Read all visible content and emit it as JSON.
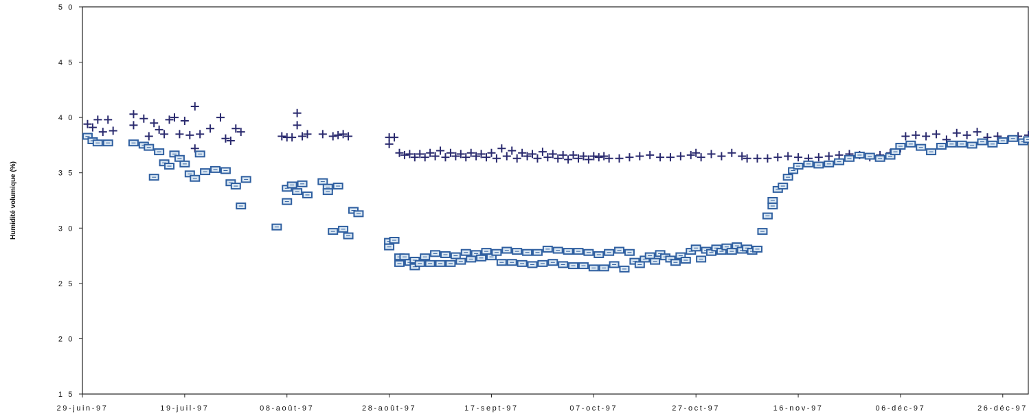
{
  "chart_data": {
    "type": "scatter",
    "title": "",
    "xlabel": "",
    "ylabel": "Humidité volumique (%)",
    "ylim": [
      15,
      50
    ],
    "yticks": [
      15,
      20,
      25,
      30,
      35,
      40,
      45,
      50
    ],
    "ytick_labels": [
      "1 5",
      "2 0",
      "2 5",
      "3 0",
      "3 5",
      "4 0",
      "4 5",
      "5 0"
    ],
    "xlim": [
      "1997-06-29",
      "1997-12-31"
    ],
    "xticks": [
      "1997-06-29",
      "1997-07-19",
      "1997-08-08",
      "1997-08-28",
      "1997-09-17",
      "1997-10-07",
      "1997-10-27",
      "1997-11-16",
      "1997-12-06",
      "1997-12-26"
    ],
    "xtick_labels": [
      "29-juin-97",
      "19-juil-97",
      "08-août-97",
      "28-août-97",
      "17-sept-97",
      "07-oct-97",
      "27-oct-97",
      "16-nov-97",
      "06-déc-97",
      "26-déc-97"
    ],
    "grid": false,
    "series": [
      {
        "marker": "plus",
        "color": "#2a2a6e",
        "points": [
          [
            "1997-06-30",
            39.4
          ],
          [
            "1997-07-01",
            39.1
          ],
          [
            "1997-07-02",
            39.8
          ],
          [
            "1997-07-03",
            38.7
          ],
          [
            "1997-07-04",
            39.8
          ],
          [
            "1997-07-05",
            38.8
          ],
          [
            "1997-07-09",
            40.3
          ],
          [
            "1997-07-09",
            39.3
          ],
          [
            "1997-07-11",
            39.9
          ],
          [
            "1997-07-12",
            38.3
          ],
          [
            "1997-07-13",
            39.5
          ],
          [
            "1997-07-14",
            38.9
          ],
          [
            "1997-07-15",
            38.5
          ],
          [
            "1997-07-16",
            39.8
          ],
          [
            "1997-07-17",
            40.0
          ],
          [
            "1997-07-18",
            38.5
          ],
          [
            "1997-07-19",
            39.7
          ],
          [
            "1997-07-20",
            38.4
          ],
          [
            "1997-07-21",
            41.0
          ],
          [
            "1997-07-21",
            37.2
          ],
          [
            "1997-07-22",
            38.5
          ],
          [
            "1997-07-24",
            39.0
          ],
          [
            "1997-07-26",
            40.0
          ],
          [
            "1997-07-27",
            38.1
          ],
          [
            "1997-07-28",
            37.9
          ],
          [
            "1997-07-29",
            39.0
          ],
          [
            "1997-07-30",
            38.7
          ],
          [
            "1997-08-07",
            38.3
          ],
          [
            "1997-08-08",
            38.2
          ],
          [
            "1997-08-09",
            38.2
          ],
          [
            "1997-08-10",
            40.4
          ],
          [
            "1997-08-10",
            39.3
          ],
          [
            "1997-08-11",
            38.3
          ],
          [
            "1997-08-12",
            38.5
          ],
          [
            "1997-08-15",
            38.5
          ],
          [
            "1997-08-17",
            38.3
          ],
          [
            "1997-08-18",
            38.4
          ],
          [
            "1997-08-19",
            38.5
          ],
          [
            "1997-08-20",
            38.3
          ],
          [
            "1997-08-28",
            38.2
          ],
          [
            "1997-08-28",
            37.6
          ],
          [
            "1997-08-29",
            38.2
          ],
          [
            "1997-08-30",
            36.8
          ],
          [
            "1997-08-31",
            36.6
          ],
          [
            "1997-09-01",
            36.7
          ],
          [
            "1997-09-02",
            36.4
          ],
          [
            "1997-09-03",
            36.7
          ],
          [
            "1997-09-04",
            36.4
          ],
          [
            "1997-09-05",
            36.8
          ],
          [
            "1997-09-06",
            36.5
          ],
          [
            "1997-09-07",
            37.0
          ],
          [
            "1997-09-08",
            36.4
          ],
          [
            "1997-09-09",
            36.8
          ],
          [
            "1997-09-10",
            36.5
          ],
          [
            "1997-09-11",
            36.7
          ],
          [
            "1997-09-12",
            36.4
          ],
          [
            "1997-09-13",
            36.8
          ],
          [
            "1997-09-14",
            36.5
          ],
          [
            "1997-09-15",
            36.7
          ],
          [
            "1997-09-16",
            36.4
          ],
          [
            "1997-09-17",
            36.8
          ],
          [
            "1997-09-18",
            36.3
          ],
          [
            "1997-09-19",
            37.2
          ],
          [
            "1997-09-20",
            36.5
          ],
          [
            "1997-09-21",
            37.0
          ],
          [
            "1997-09-22",
            36.3
          ],
          [
            "1997-09-23",
            36.8
          ],
          [
            "1997-09-24",
            36.5
          ],
          [
            "1997-09-25",
            36.7
          ],
          [
            "1997-09-26",
            36.3
          ],
          [
            "1997-09-27",
            36.9
          ],
          [
            "1997-09-28",
            36.4
          ],
          [
            "1997-09-29",
            36.7
          ],
          [
            "1997-09-30",
            36.3
          ],
          [
            "1997-10-01",
            36.6
          ],
          [
            "1997-10-02",
            36.2
          ],
          [
            "1997-10-03",
            36.6
          ],
          [
            "1997-10-04",
            36.3
          ],
          [
            "1997-10-05",
            36.5
          ],
          [
            "1997-10-06",
            36.2
          ],
          [
            "1997-10-07",
            36.5
          ],
          [
            "1997-10-08",
            36.4
          ],
          [
            "1997-10-09",
            36.5
          ],
          [
            "1997-10-10",
            36.3
          ],
          [
            "1997-10-12",
            36.3
          ],
          [
            "1997-10-14",
            36.4
          ],
          [
            "1997-10-16",
            36.5
          ],
          [
            "1997-10-18",
            36.6
          ],
          [
            "1997-10-20",
            36.4
          ],
          [
            "1997-10-22",
            36.4
          ],
          [
            "1997-10-24",
            36.5
          ],
          [
            "1997-10-26",
            36.6
          ],
          [
            "1997-10-27",
            36.8
          ],
          [
            "1997-10-28",
            36.4
          ],
          [
            "1997-10-30",
            36.7
          ],
          [
            "1997-11-01",
            36.5
          ],
          [
            "1997-11-03",
            36.8
          ],
          [
            "1997-11-05",
            36.5
          ],
          [
            "1997-11-06",
            36.3
          ],
          [
            "1997-11-08",
            36.3
          ],
          [
            "1997-11-10",
            36.3
          ],
          [
            "1997-11-12",
            36.4
          ],
          [
            "1997-11-14",
            36.5
          ],
          [
            "1997-11-16",
            36.4
          ],
          [
            "1997-11-18",
            36.3
          ],
          [
            "1997-11-20",
            36.4
          ],
          [
            "1997-11-22",
            36.5
          ],
          [
            "1997-11-24",
            36.6
          ],
          [
            "1997-11-26",
            36.7
          ],
          [
            "1997-11-28",
            36.6
          ],
          [
            "1997-11-30",
            36.4
          ],
          [
            "1997-12-02",
            36.6
          ],
          [
            "1997-12-04",
            36.8
          ],
          [
            "1997-12-06",
            37.2
          ],
          [
            "1997-12-07",
            38.3
          ],
          [
            "1997-12-09",
            38.4
          ],
          [
            "1997-12-11",
            38.3
          ],
          [
            "1997-12-13",
            38.5
          ],
          [
            "1997-12-15",
            38.0
          ],
          [
            "1997-12-17",
            38.6
          ],
          [
            "1997-12-19",
            38.4
          ],
          [
            "1997-12-21",
            38.7
          ],
          [
            "1997-12-23",
            38.2
          ],
          [
            "1997-12-25",
            38.3
          ],
          [
            "1997-12-27",
            38.0
          ],
          [
            "1997-12-29",
            38.3
          ],
          [
            "1997-12-31",
            38.4
          ]
        ]
      },
      {
        "marker": "box",
        "color": "#2f5fa0",
        "points": [
          [
            "1997-06-30",
            38.3
          ],
          [
            "1997-07-01",
            37.9
          ],
          [
            "1997-07-02",
            37.7
          ],
          [
            "1997-07-04",
            37.7
          ],
          [
            "1997-07-09",
            37.7
          ],
          [
            "1997-07-11",
            37.5
          ],
          [
            "1997-07-12",
            37.3
          ],
          [
            "1997-07-13",
            34.6
          ],
          [
            "1997-07-14",
            36.9
          ],
          [
            "1997-07-15",
            35.9
          ],
          [
            "1997-07-16",
            35.6
          ],
          [
            "1997-07-17",
            36.7
          ],
          [
            "1997-07-18",
            36.3
          ],
          [
            "1997-07-19",
            35.8
          ],
          [
            "1997-07-20",
            34.9
          ],
          [
            "1997-07-21",
            34.5
          ],
          [
            "1997-07-22",
            36.7
          ],
          [
            "1997-07-23",
            35.1
          ],
          [
            "1997-07-25",
            35.3
          ],
          [
            "1997-07-27",
            35.2
          ],
          [
            "1997-07-28",
            34.1
          ],
          [
            "1997-07-29",
            33.8
          ],
          [
            "1997-07-30",
            32.0
          ],
          [
            "1997-07-31",
            34.4
          ],
          [
            "1997-08-06",
            30.1
          ],
          [
            "1997-08-08",
            33.6
          ],
          [
            "1997-08-08",
            32.4
          ],
          [
            "1997-08-09",
            33.9
          ],
          [
            "1997-08-10",
            33.3
          ],
          [
            "1997-08-11",
            34.0
          ],
          [
            "1997-08-12",
            33.0
          ],
          [
            "1997-08-15",
            34.2
          ],
          [
            "1997-08-16",
            33.7
          ],
          [
            "1997-08-16",
            33.3
          ],
          [
            "1997-08-17",
            29.7
          ],
          [
            "1997-08-18",
            33.8
          ],
          [
            "1997-08-19",
            29.9
          ],
          [
            "1997-08-20",
            29.3
          ],
          [
            "1997-08-21",
            31.6
          ],
          [
            "1997-08-22",
            31.3
          ],
          [
            "1997-08-28",
            28.8
          ],
          [
            "1997-08-28",
            28.3
          ],
          [
            "1997-08-29",
            28.9
          ],
          [
            "1997-08-30",
            27.4
          ],
          [
            "1997-08-30",
            26.8
          ],
          [
            "1997-08-31",
            27.4
          ],
          [
            "1997-09-01",
            26.9
          ],
          [
            "1997-09-02",
            26.5
          ],
          [
            "1997-09-02",
            27.1
          ],
          [
            "1997-09-03",
            26.8
          ],
          [
            "1997-09-04",
            27.4
          ],
          [
            "1997-09-05",
            26.8
          ],
          [
            "1997-09-06",
            27.7
          ],
          [
            "1997-09-07",
            26.8
          ],
          [
            "1997-09-08",
            27.6
          ],
          [
            "1997-09-09",
            26.8
          ],
          [
            "1997-09-10",
            27.5
          ],
          [
            "1997-09-11",
            27.0
          ],
          [
            "1997-09-12",
            27.8
          ],
          [
            "1997-09-13",
            27.2
          ],
          [
            "1997-09-14",
            27.7
          ],
          [
            "1997-09-15",
            27.3
          ],
          [
            "1997-09-16",
            27.9
          ],
          [
            "1997-09-17",
            27.4
          ],
          [
            "1997-09-18",
            27.8
          ],
          [
            "1997-09-19",
            26.9
          ],
          [
            "1997-09-20",
            28.0
          ],
          [
            "1997-09-21",
            26.9
          ],
          [
            "1997-09-22",
            27.9
          ],
          [
            "1997-09-23",
            26.8
          ],
          [
            "1997-09-24",
            27.8
          ],
          [
            "1997-09-25",
            26.7
          ],
          [
            "1997-09-26",
            27.8
          ],
          [
            "1997-09-27",
            26.8
          ],
          [
            "1997-09-28",
            28.1
          ],
          [
            "1997-09-29",
            26.9
          ],
          [
            "1997-09-30",
            28.0
          ],
          [
            "1997-10-01",
            26.7
          ],
          [
            "1997-10-02",
            27.9
          ],
          [
            "1997-10-03",
            26.6
          ],
          [
            "1997-10-04",
            27.9
          ],
          [
            "1997-10-05",
            26.6
          ],
          [
            "1997-10-06",
            27.8
          ],
          [
            "1997-10-07",
            26.4
          ],
          [
            "1997-10-08",
            27.6
          ],
          [
            "1997-10-09",
            26.4
          ],
          [
            "1997-10-10",
            27.8
          ],
          [
            "1997-10-11",
            26.7
          ],
          [
            "1997-10-12",
            28.0
          ],
          [
            "1997-10-13",
            26.3
          ],
          [
            "1997-10-14",
            27.8
          ],
          [
            "1997-10-15",
            27.0
          ],
          [
            "1997-10-16",
            26.7
          ],
          [
            "1997-10-17",
            27.2
          ],
          [
            "1997-10-18",
            27.5
          ],
          [
            "1997-10-19",
            27.0
          ],
          [
            "1997-10-20",
            27.7
          ],
          [
            "1997-10-21",
            27.4
          ],
          [
            "1997-10-22",
            27.2
          ],
          [
            "1997-10-23",
            26.9
          ],
          [
            "1997-10-24",
            27.5
          ],
          [
            "1997-10-25",
            27.1
          ],
          [
            "1997-10-26",
            27.9
          ],
          [
            "1997-10-27",
            28.2
          ],
          [
            "1997-10-28",
            27.2
          ],
          [
            "1997-10-29",
            28.0
          ],
          [
            "1997-10-30",
            27.8
          ],
          [
            "1997-10-31",
            28.2
          ],
          [
            "1997-11-01",
            27.9
          ],
          [
            "1997-11-02",
            28.3
          ],
          [
            "1997-11-03",
            27.9
          ],
          [
            "1997-11-04",
            28.4
          ],
          [
            "1997-11-05",
            28.0
          ],
          [
            "1997-11-06",
            28.2
          ],
          [
            "1997-11-07",
            27.9
          ],
          [
            "1997-11-08",
            28.1
          ],
          [
            "1997-11-09",
            29.7
          ],
          [
            "1997-11-10",
            31.1
          ],
          [
            "1997-11-11",
            32.0
          ],
          [
            "1997-11-11",
            32.5
          ],
          [
            "1997-11-12",
            33.5
          ],
          [
            "1997-11-13",
            33.8
          ],
          [
            "1997-11-14",
            34.6
          ],
          [
            "1997-11-15",
            35.2
          ],
          [
            "1997-11-16",
            35.6
          ],
          [
            "1997-11-18",
            35.8
          ],
          [
            "1997-11-20",
            35.7
          ],
          [
            "1997-11-22",
            35.8
          ],
          [
            "1997-11-24",
            36.0
          ],
          [
            "1997-11-26",
            36.3
          ],
          [
            "1997-11-28",
            36.6
          ],
          [
            "1997-11-30",
            36.5
          ],
          [
            "1997-12-02",
            36.3
          ],
          [
            "1997-12-04",
            36.5
          ],
          [
            "1997-12-05",
            36.9
          ],
          [
            "1997-12-06",
            37.4
          ],
          [
            "1997-12-08",
            37.6
          ],
          [
            "1997-12-10",
            37.3
          ],
          [
            "1997-12-12",
            36.9
          ],
          [
            "1997-12-14",
            37.4
          ],
          [
            "1997-12-16",
            37.6
          ],
          [
            "1997-12-18",
            37.6
          ],
          [
            "1997-12-20",
            37.5
          ],
          [
            "1997-12-22",
            37.8
          ],
          [
            "1997-12-24",
            37.6
          ],
          [
            "1997-12-26",
            37.9
          ],
          [
            "1997-12-28",
            38.1
          ],
          [
            "1997-12-30",
            37.8
          ],
          [
            "1997-12-31",
            38.0
          ]
        ]
      }
    ]
  }
}
